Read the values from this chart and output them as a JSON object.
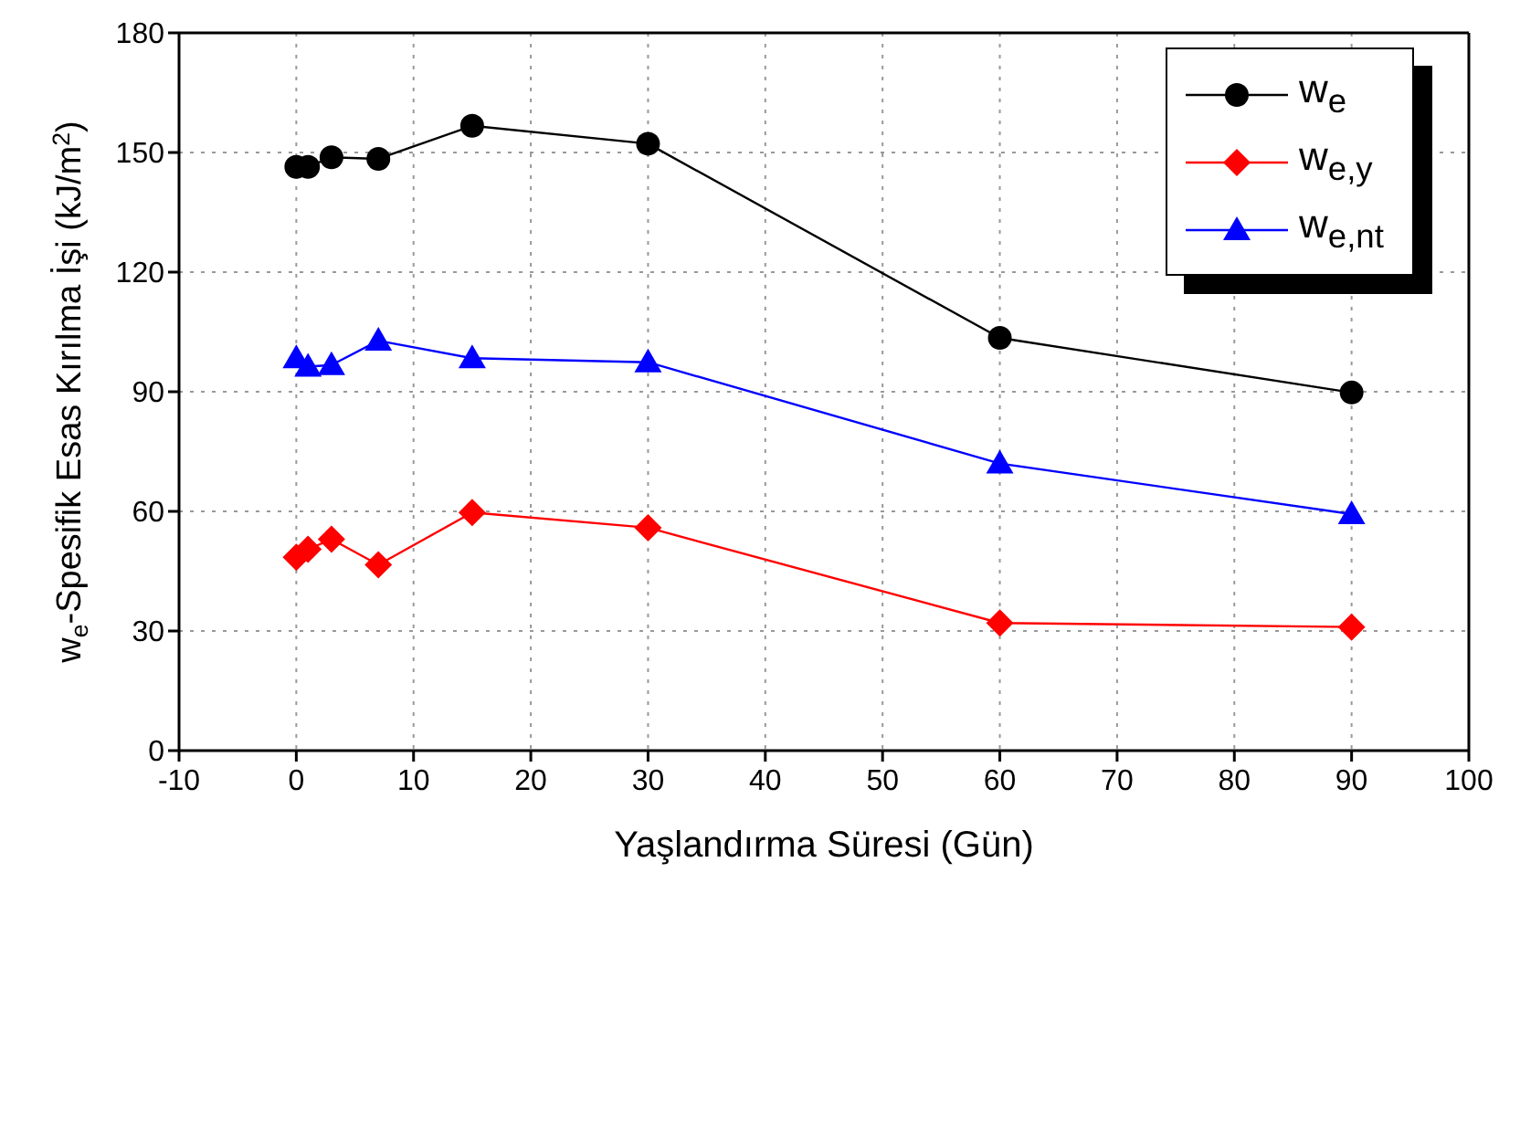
{
  "chart_data": {
    "type": "line",
    "xlabel": "Yaşlandırma Süresi (Gün)",
    "ylabel": "w$_{e}$-Spesifik Esas Kırılma İşi (kJ/m$^{2}$)",
    "x": [
      0,
      1,
      3,
      7,
      15,
      30,
      60,
      90
    ],
    "series": [
      {
        "name": "w$_{e}$",
        "color": "#000000",
        "marker": "circle",
        "values": [
          146.4,
          146.4,
          148.8,
          148.4,
          156.7,
          152.2,
          103.5,
          89.8
        ]
      },
      {
        "name": "w$_{e,y}$",
        "color": "#ff0000",
        "marker": "diamond",
        "values": [
          48.5,
          50.5,
          53,
          46.6,
          59.7,
          55.9,
          32,
          31
        ]
      },
      {
        "name": "w$_{e,nt}$",
        "color": "#0000ff",
        "marker": "triangle",
        "values": [
          98.4,
          96.3,
          96.7,
          102.8,
          98.4,
          97.4,
          72,
          59.3
        ]
      }
    ],
    "xlim": [
      -10,
      100
    ],
    "xticks": [
      -10,
      0,
      10,
      20,
      30,
      40,
      50,
      60,
      70,
      80,
      90,
      100
    ],
    "ylim": [
      0,
      180
    ],
    "yticks": [
      0,
      30,
      60,
      90,
      120,
      150,
      180
    ],
    "grid": true,
    "legend": "top right",
    "line_style": "solid"
  }
}
